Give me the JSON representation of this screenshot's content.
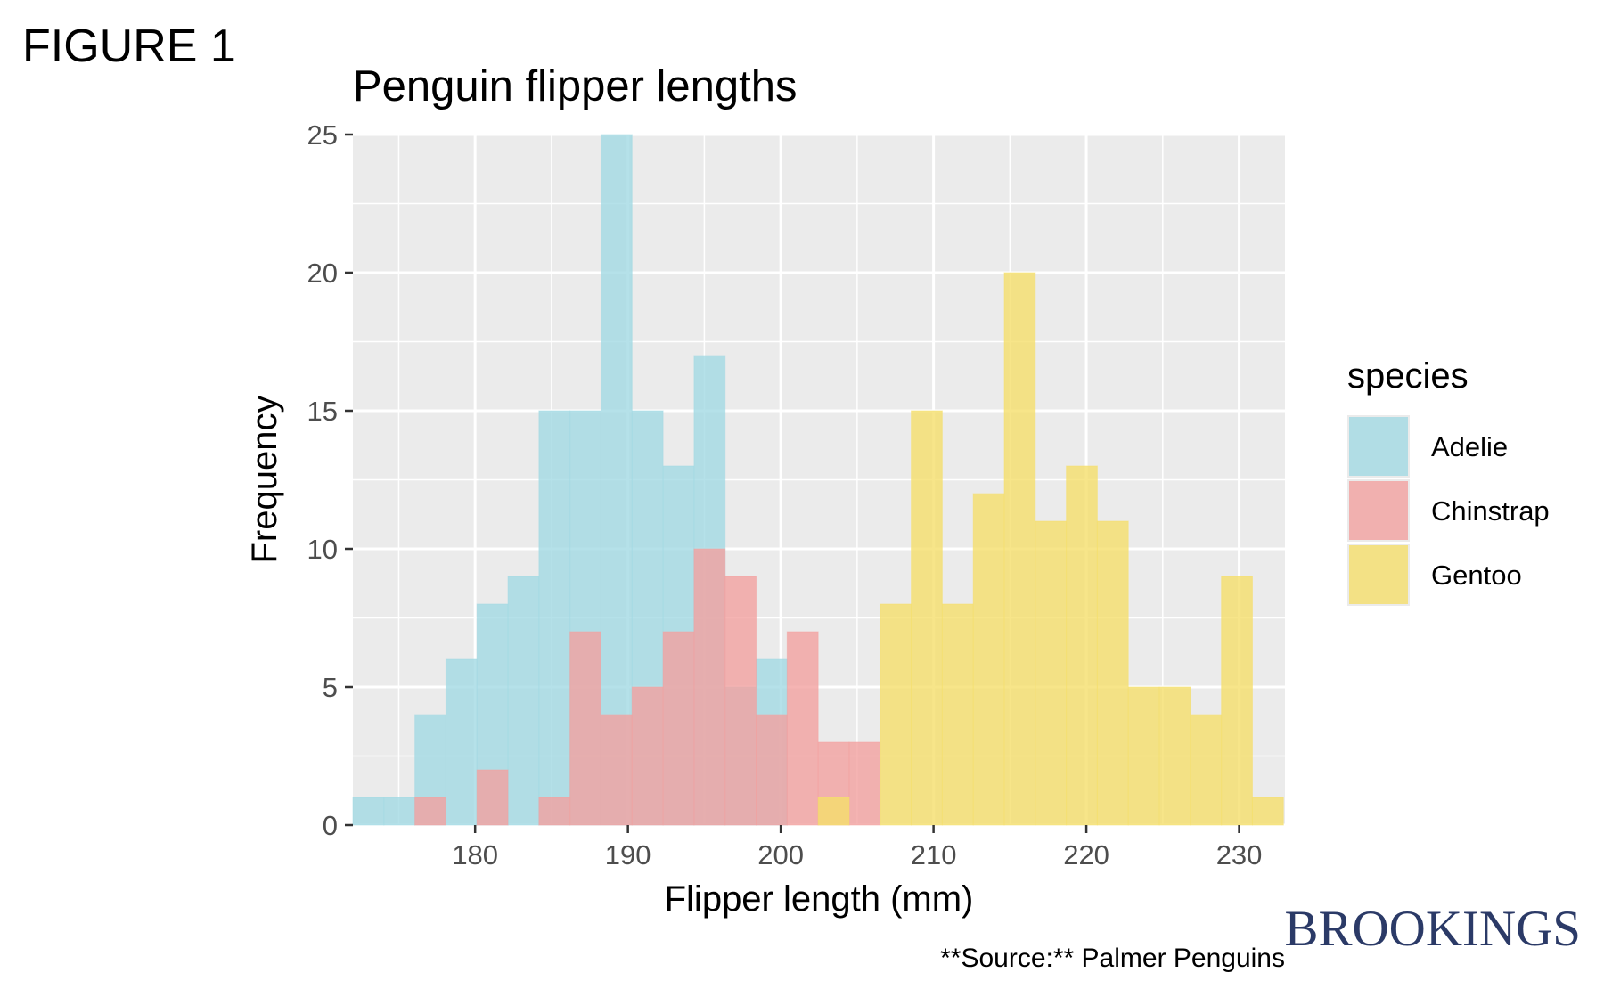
{
  "figure_label": "FIGURE 1",
  "brand": {
    "name": "BROOKINGS",
    "color": "#2b3a67"
  },
  "chart_data": {
    "type": "bar",
    "subtype": "overlaid-histogram",
    "title": "Penguin flipper lengths",
    "xlabel": "Flipper length (mm)",
    "ylabel": "Frequency",
    "caption": "**Source:** Palmer Penguins",
    "xlim": [
      172,
      233
    ],
    "ylim": [
      0,
      25
    ],
    "x_ticks": [
      180,
      190,
      200,
      210,
      220,
      230
    ],
    "y_ticks": [
      0,
      5,
      10,
      15,
      20,
      25
    ],
    "bin_start": 172.0,
    "bin_width": 2.03,
    "grid": true,
    "legend": {
      "title": "species",
      "position": "right"
    },
    "series": [
      {
        "name": "Adelie",
        "color": "#a2dae3",
        "values": [
          1,
          1,
          4,
          6,
          8,
          9,
          15,
          15,
          25,
          15,
          13,
          17,
          5,
          6,
          0,
          0,
          0,
          0,
          0,
          0,
          0,
          0,
          0,
          0,
          0,
          0,
          0,
          0,
          0,
          0
        ]
      },
      {
        "name": "Chinstrap",
        "color": "#f3a1a0",
        "values": [
          0,
          0,
          1,
          0,
          2,
          0,
          1,
          7,
          4,
          5,
          7,
          10,
          9,
          4,
          7,
          3,
          3,
          0,
          0,
          0,
          0,
          0,
          0,
          0,
          0,
          0,
          0,
          0,
          0,
          0
        ]
      },
      {
        "name": "Gentoo",
        "color": "#f5df6b",
        "values": [
          0,
          0,
          0,
          0,
          0,
          0,
          0,
          0,
          0,
          0,
          0,
          0,
          0,
          0,
          0,
          1,
          0,
          8,
          15,
          8,
          12,
          20,
          11,
          13,
          11,
          5,
          5,
          4,
          9,
          1
        ]
      }
    ]
  }
}
